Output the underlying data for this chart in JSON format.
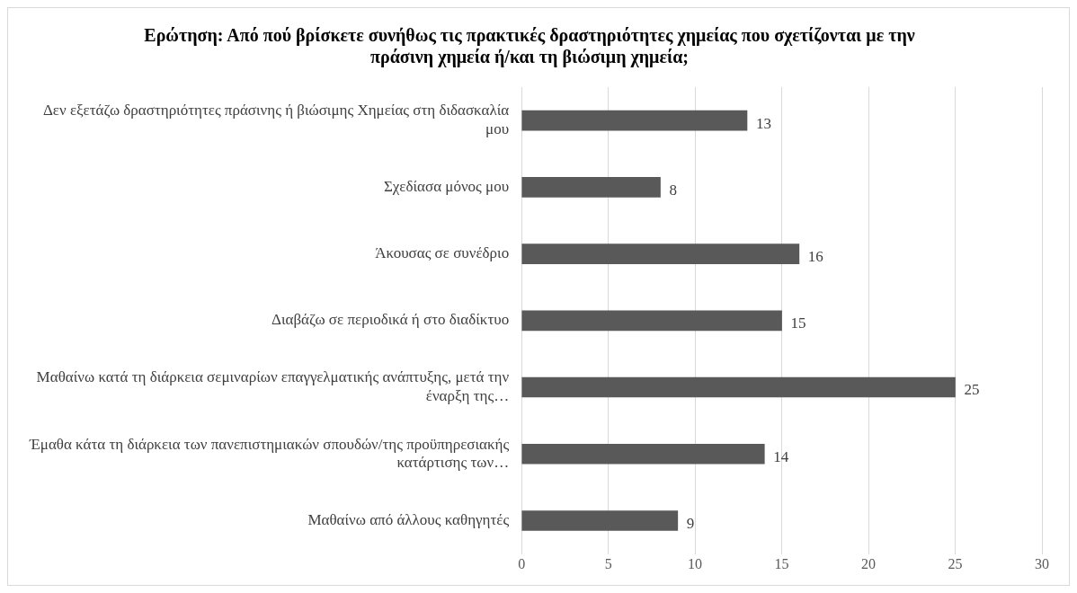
{
  "chart_data": {
    "type": "bar",
    "orientation": "horizontal",
    "title": "Ερώτηση: Από πού βρίσκετε συνήθως τις πρακτικές δραστηριότητες χημείας που σχετίζονται με την πράσινη χημεία ή/και τη βιώσιμη χημεία;",
    "categories": [
      "Δεν εξετάζω δραστηριότητες πράσινης ή βιώσιμης Χημείας στη διδασκαλία μου",
      "Σχεδίασα μόνος μου",
      "Άκουσας σε συνέδριο",
      "Διαβάζω σε περιοδικά ή στο διαδίκτυο",
      "Μαθαίνω κατά τη διάρκεια σεμιναρίων επαγγελματικής ανάπτυξης, μετά την έναρξη της…",
      "Έμαθα κάτα τη διάρκεια των πανεπιστημιακών σπουδών/της προϋπηρεσιακής κατάρτισης των…",
      "Μαθαίνω από άλλους καθηγητές"
    ],
    "values": [
      13,
      8,
      16,
      15,
      25,
      14,
      9
    ],
    "color": "#595959",
    "xlim": [
      0,
      30
    ],
    "xticks": [
      0,
      5,
      10,
      15,
      20,
      25,
      30
    ],
    "grid": "x",
    "data_labels": true,
    "legend": false
  }
}
